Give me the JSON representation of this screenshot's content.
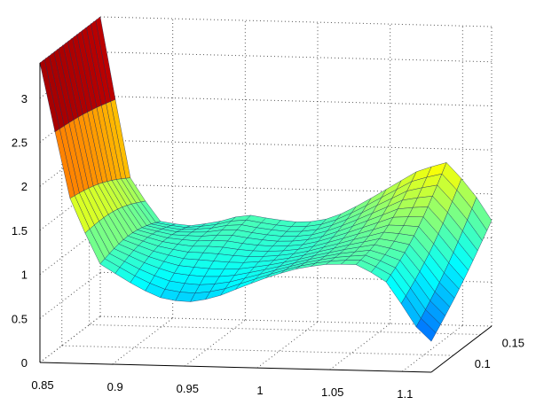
{
  "chart_data": {
    "type": "surface",
    "title": "",
    "xlabel": "",
    "ylabel": "",
    "zlabel": "",
    "xlim": [
      0.85,
      1.12
    ],
    "ylim": [
      0.06,
      0.17
    ],
    "zlim": [
      0,
      3.4
    ],
    "x_ticks": [
      "0.85",
      "0.9",
      "0.95",
      "1",
      "1.05",
      "1.1"
    ],
    "y_ticks": [
      "0.1",
      "0.15"
    ],
    "z_ticks": [
      "0",
      "0.5",
      "1",
      "1.5",
      "2",
      "2.5",
      "3"
    ],
    "colormap": "jet",
    "grid": true,
    "front_edge": {
      "description": "surface height along the near (low second-axis) edge",
      "x": [
        0.85,
        0.87,
        0.89,
        0.91,
        0.93,
        0.95,
        0.97,
        0.99,
        1.01,
        1.03,
        1.05,
        1.07,
        1.09,
        1.11,
        1.12
      ],
      "z": [
        3.4,
        1.9,
        1.15,
        0.95,
        0.78,
        0.72,
        0.78,
        0.92,
        1.05,
        1.15,
        1.2,
        1.2,
        1.0,
        0.5,
        0.35
      ]
    },
    "back_edge": {
      "description": "surface height along the far (high second-axis) edge",
      "x": [
        0.85,
        0.87,
        0.89,
        0.91,
        0.93,
        0.95,
        0.97,
        0.99,
        1.01,
        1.03,
        1.05,
        1.07,
        1.09,
        1.11,
        1.12
      ],
      "z": [
        3.4,
        1.6,
        1.1,
        1.05,
        1.1,
        1.2,
        1.15,
        1.12,
        1.18,
        1.35,
        1.55,
        1.75,
        1.85,
        1.45,
        1.2
      ]
    }
  }
}
